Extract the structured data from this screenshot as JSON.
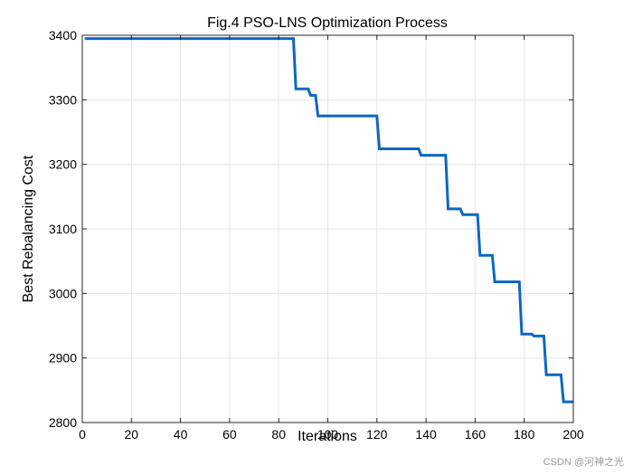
{
  "chart_data": {
    "type": "line",
    "title": "Fig.4 PSO-LNS Optimization Process",
    "xlabel": "Iterations",
    "ylabel": "Best Rebalancing Cost",
    "xlim": [
      0,
      200
    ],
    "ylim": [
      2800,
      3400
    ],
    "xticks": [
      0,
      20,
      40,
      60,
      80,
      100,
      120,
      140,
      160,
      180,
      200
    ],
    "yticks": [
      2800,
      2900,
      3000,
      3100,
      3200,
      3300,
      3400
    ],
    "grid": true,
    "series": [
      {
        "name": "Best Rebalancing Cost",
        "color": "#0b67c2",
        "x": [
          1,
          86,
          87,
          92,
          93,
          95,
          96,
          120,
          121,
          137,
          138,
          148,
          149,
          154,
          155,
          161,
          162,
          167,
          168,
          178,
          179,
          183,
          184,
          188,
          189,
          195,
          196,
          200
        ],
        "y": [
          3395,
          3395,
          3317,
          3317,
          3307,
          3307,
          3275,
          3275,
          3224,
          3224,
          3214,
          3214,
          3131,
          3131,
          3122,
          3122,
          3059,
          3059,
          3018,
          3018,
          2937,
          2937,
          2934,
          2934,
          2874,
          2874,
          2832,
          2832
        ]
      }
    ]
  },
  "watermark": "CSDN @河神之光"
}
